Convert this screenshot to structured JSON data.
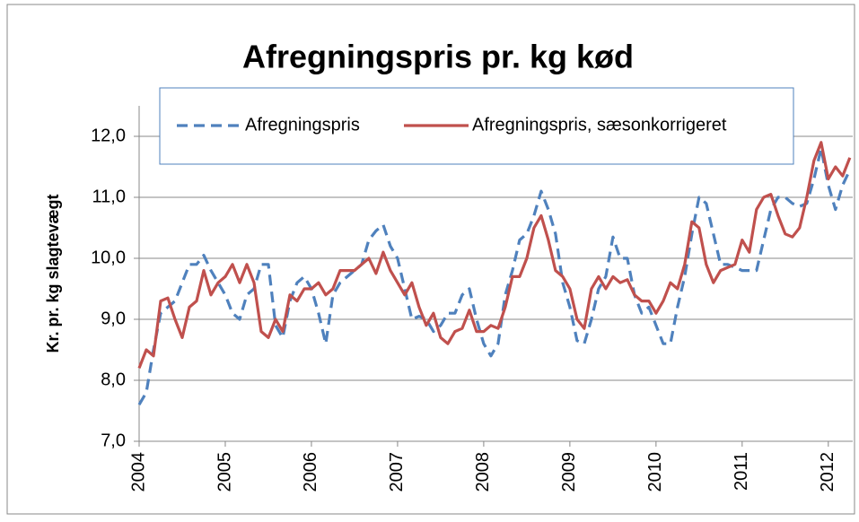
{
  "chart_data": {
    "type": "line",
    "title": "Afregningspris pr. kg  kød",
    "y_label": "Kr. pr. kg  slagtevægt",
    "categories": [
      "2004",
      null,
      null,
      null,
      null,
      null,
      null,
      null,
      null,
      null,
      null,
      null,
      "2005",
      null,
      null,
      null,
      null,
      null,
      null,
      null,
      null,
      null,
      null,
      null,
      "2006",
      null,
      null,
      null,
      null,
      null,
      null,
      null,
      null,
      null,
      null,
      null,
      "2007",
      null,
      null,
      null,
      null,
      null,
      null,
      null,
      null,
      null,
      null,
      null,
      "2008",
      null,
      null,
      null,
      null,
      null,
      null,
      null,
      null,
      null,
      null,
      null,
      "2009",
      null,
      null,
      null,
      null,
      null,
      null,
      null,
      null,
      null,
      null,
      null,
      "2010",
      null,
      null,
      null,
      null,
      null,
      null,
      null,
      null,
      null,
      null,
      null,
      "2011",
      null,
      null,
      null,
      null,
      null,
      null,
      null,
      null,
      null,
      null,
      null,
      "2012",
      null,
      null,
      null
    ],
    "series": [
      {
        "name": "Afregningspris",
        "color": "#4f81bd",
        "dashed": true,
        "values": [
          7.6,
          7.8,
          8.5,
          9.1,
          9.2,
          9.3,
          9.6,
          9.9,
          9.9,
          10.05,
          9.8,
          9.6,
          9.4,
          9.1,
          9.0,
          9.4,
          9.5,
          9.9,
          9.9,
          8.9,
          8.7,
          9.3,
          9.6,
          9.7,
          9.5,
          9.1,
          8.6,
          9.4,
          9.6,
          9.7,
          9.8,
          9.9,
          10.3,
          10.45,
          10.55,
          10.2,
          10.0,
          9.5,
          9.0,
          9.05,
          9.0,
          8.8,
          8.9,
          9.1,
          9.1,
          9.4,
          9.5,
          9.0,
          8.6,
          8.4,
          8.6,
          9.4,
          9.8,
          10.3,
          10.4,
          10.7,
          11.1,
          10.8,
          10.4,
          9.6,
          9.2,
          8.65,
          8.6,
          9.0,
          9.5,
          9.7,
          10.35,
          10.0,
          10.0,
          9.4,
          9.1,
          9.2,
          8.9,
          8.6,
          8.6,
          9.2,
          9.7,
          10.4,
          11.0,
          10.9,
          10.4,
          9.9,
          9.9,
          9.85,
          9.8,
          9.8,
          9.8,
          10.3,
          10.8,
          11.0,
          11.0,
          10.9,
          10.85,
          10.9,
          11.3,
          11.8,
          11.2,
          10.8,
          11.2,
          11.45
        ]
      },
      {
        "name": "Afregningspris, sæsonkorrigeret",
        "color": "#c0504d",
        "dashed": false,
        "values": [
          8.2,
          8.5,
          8.4,
          9.3,
          9.35,
          9.0,
          8.7,
          9.2,
          9.3,
          9.8,
          9.4,
          9.6,
          9.7,
          9.9,
          9.6,
          9.9,
          9.6,
          8.8,
          8.7,
          9.0,
          8.8,
          9.4,
          9.3,
          9.5,
          9.5,
          9.6,
          9.4,
          9.5,
          9.8,
          9.8,
          9.8,
          9.9,
          10.0,
          9.75,
          10.1,
          9.8,
          9.6,
          9.4,
          9.6,
          9.2,
          8.9,
          9.1,
          8.7,
          8.6,
          8.8,
          8.85,
          9.15,
          8.8,
          8.8,
          8.9,
          8.85,
          9.2,
          9.7,
          9.7,
          10.0,
          10.5,
          10.7,
          10.3,
          9.8,
          9.7,
          9.5,
          9.0,
          8.85,
          9.5,
          9.7,
          9.5,
          9.7,
          9.6,
          9.65,
          9.4,
          9.3,
          9.3,
          9.1,
          9.3,
          9.6,
          9.5,
          9.9,
          10.6,
          10.5,
          9.9,
          9.6,
          9.8,
          9.85,
          9.9,
          10.3,
          10.1,
          10.8,
          11.0,
          11.05,
          10.7,
          10.4,
          10.35,
          10.5,
          11.0,
          11.6,
          11.9,
          11.3,
          11.5,
          11.35,
          11.65
        ]
      }
    ],
    "ylim": [
      7,
      12.5
    ],
    "yticks": [
      {
        "value": 7,
        "label": "7,0"
      },
      {
        "value": 8,
        "label": "8,0"
      },
      {
        "value": 9,
        "label": "9,0"
      },
      {
        "value": 10,
        "label": "10,0"
      },
      {
        "value": 11,
        "label": "11,0"
      },
      {
        "value": 12,
        "label": "12,0"
      }
    ],
    "grid": true
  }
}
